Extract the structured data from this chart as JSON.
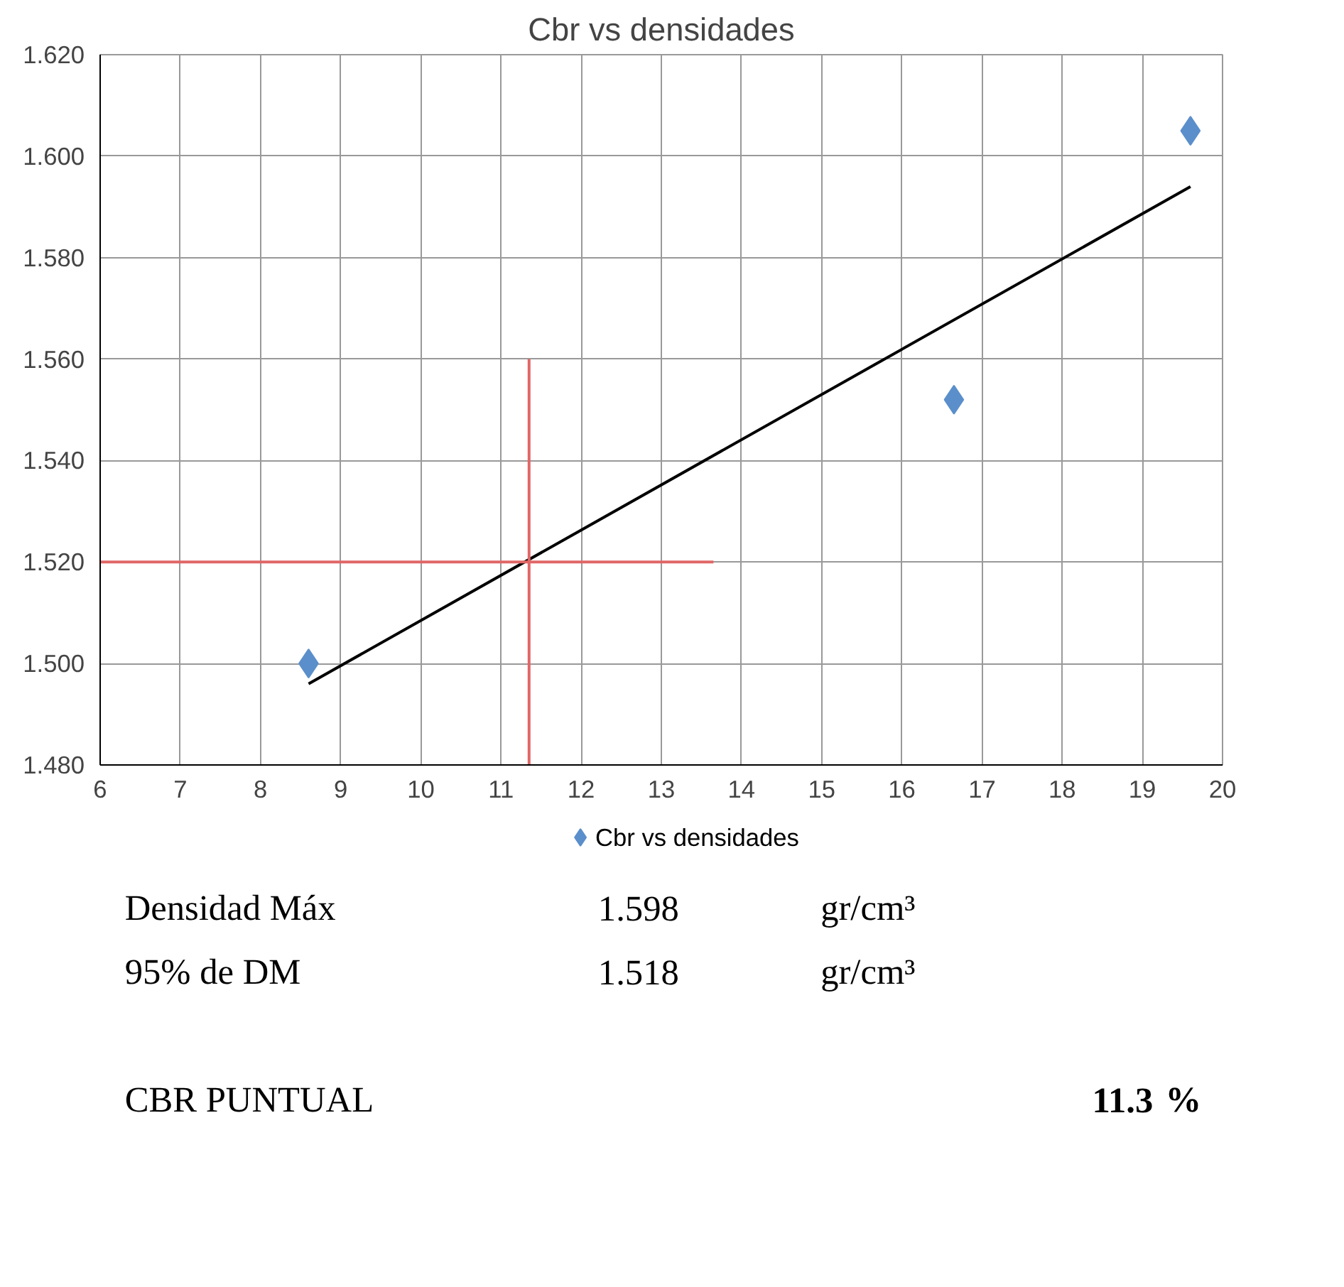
{
  "chart_data": {
    "type": "scatter",
    "title": "Cbr vs densidades",
    "series": [
      {
        "name": "Cbr vs densidades",
        "color": "#5b8fcb",
        "x": [
          8.6,
          16.65,
          19.6
        ],
        "values": [
          1.5,
          1.552,
          1.605
        ]
      },
      {
        "type": "line",
        "marker": "none",
        "color": "#000000",
        "x": [
          8.6,
          19.6
        ],
        "values": [
          1.496,
          1.594
        ]
      },
      {
        "type": "line",
        "marker": "none",
        "color": "#e06666",
        "x": [
          6,
          13.65
        ],
        "values": [
          1.52,
          1.52
        ]
      },
      {
        "type": "line",
        "marker": "none",
        "color": "#e06666",
        "x": [
          11.35,
          11.35
        ],
        "values": [
          1.48,
          1.56
        ]
      }
    ],
    "xlim": [
      6,
      20
    ],
    "xticks": [
      6,
      7,
      8,
      9,
      10,
      11,
      12,
      13,
      14,
      15,
      16,
      17,
      18,
      19,
      20
    ],
    "ylim": [
      1.48,
      1.62
    ],
    "yticks": [
      {
        "value": 1.48,
        "label": "1.480"
      },
      {
        "value": 1.5,
        "label": "1.500"
      },
      {
        "value": 1.52,
        "label": "1.520"
      },
      {
        "value": 1.54,
        "label": "1.540"
      },
      {
        "value": 1.56,
        "label": "1.560"
      },
      {
        "value": 1.58,
        "label": "1.580"
      },
      {
        "value": 1.6,
        "label": "1.600"
      },
      {
        "value": 1.62,
        "label": "1.620"
      }
    ],
    "grid": true,
    "legend": "bottom",
    "marker": "diamond",
    "line_style": "solid",
    "annotations": [
      "Densidad Máx",
      "1.598",
      "gr/cm³",
      "95% de DM",
      "1.518",
      "gr/cm³",
      "CBR PUNTUAL",
      "11.3",
      "%"
    ]
  }
}
